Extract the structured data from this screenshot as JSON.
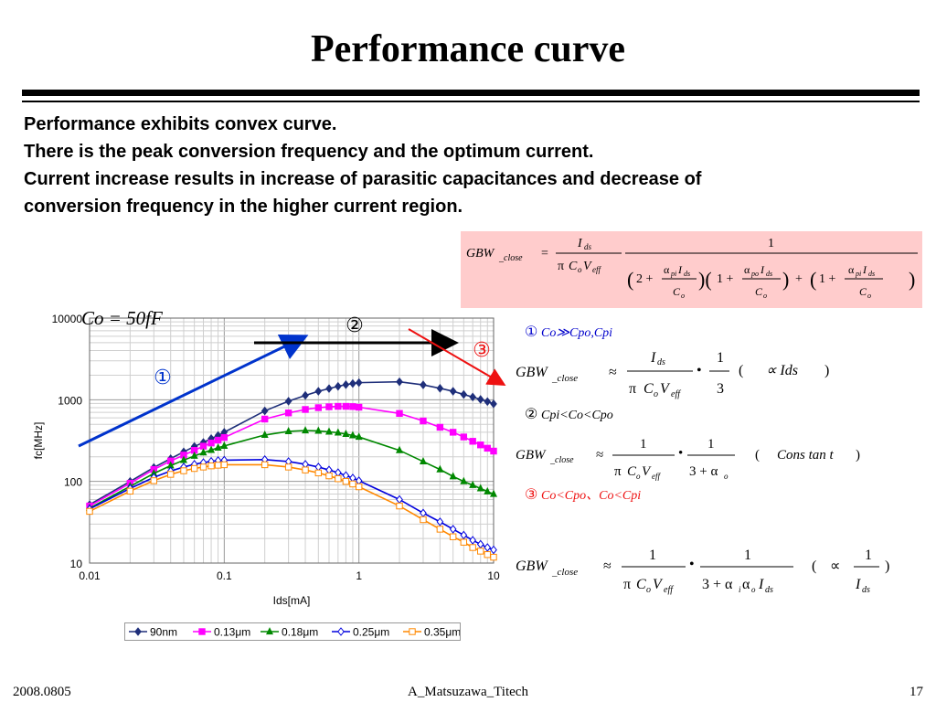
{
  "slide": {
    "title": "Performance curve",
    "bullets": [
      "Performance exhibits convex curve.",
      "There is the peak conversion frequency and the optimum current.",
      "Current increase results in increase of parasitic capacitances and decrease of",
      "conversion frequency in the higher current region."
    ],
    "footer_left": "2008.0805",
    "footer_center": "A_Matsuzawa_Titech",
    "footer_right": "17"
  },
  "formulas": {
    "main_lhs": "GBW",
    "main_lhs_sub": "_close",
    "case1_label": "①",
    "case1_cond": "Co≫Cpo,Cpi",
    "case1_note": "∝ Ids",
    "case2_label": "②",
    "case2_cond": "Cpi<Co<Cpo",
    "case2_note": "Cons tan t",
    "case3_label": "③",
    "case3_cond": "Co<Cpo、Co<Cpi",
    "case3_note": "∝ 1/Ids"
  },
  "annotations": {
    "co_label": "Co = 50fF",
    "marker1": "①",
    "marker2": "②",
    "marker3": "③"
  },
  "colors": {
    "formula_bg": "#ffcccc",
    "arrow1": "#0033cc",
    "arrow2": "#000000",
    "arrow3": "#ee1111",
    "case3_text": "#ee1111",
    "case1_text": "#0000cc"
  },
  "chart_data": {
    "type": "line",
    "xlabel": "Ids[mA]",
    "ylabel": "fc[MHz]",
    "xscale": "log",
    "yscale": "log",
    "xlim": [
      0.01,
      10
    ],
    "ylim": [
      10,
      10000
    ],
    "xticks": [
      "0.01",
      "0.1",
      "1",
      "10"
    ],
    "yticks": [
      "10",
      "100",
      "1000",
      "10000"
    ],
    "grid": true,
    "legend_position": "bottom",
    "series": [
      {
        "name": "90nm",
        "color": "#1f2f7a",
        "marker": "diamond",
        "x": [
          0.01,
          0.02,
          0.03,
          0.04,
          0.05,
          0.06,
          0.07,
          0.08,
          0.09,
          0.1,
          0.2,
          0.3,
          0.4,
          0.5,
          0.6,
          0.7,
          0.8,
          0.9,
          1,
          2,
          3,
          4,
          5,
          6,
          7,
          8,
          9,
          10
        ],
        "y": [
          52,
          100,
          148,
          190,
          230,
          268,
          300,
          335,
          365,
          400,
          730,
          960,
          1130,
          1270,
          1370,
          1460,
          1530,
          1580,
          1620,
          1660,
          1520,
          1380,
          1270,
          1160,
          1080,
          1010,
          950,
          890
        ]
      },
      {
        "name": "0.13μm",
        "color": "#ff00ff",
        "marker": "square",
        "x": [
          0.01,
          0.02,
          0.03,
          0.04,
          0.05,
          0.06,
          0.07,
          0.08,
          0.09,
          0.1,
          0.2,
          0.3,
          0.4,
          0.5,
          0.6,
          0.7,
          0.8,
          0.9,
          1,
          2,
          3,
          4,
          5,
          6,
          7,
          8,
          9,
          10
        ],
        "y": [
          50,
          95,
          140,
          178,
          210,
          240,
          270,
          295,
          320,
          345,
          580,
          690,
          760,
          800,
          820,
          830,
          830,
          825,
          810,
          680,
          550,
          460,
          400,
          350,
          310,
          280,
          255,
          235
        ]
      },
      {
        "name": "0.18μm",
        "color": "#008800",
        "marker": "triangle",
        "x": [
          0.01,
          0.02,
          0.03,
          0.04,
          0.05,
          0.06,
          0.07,
          0.08,
          0.09,
          0.1,
          0.2,
          0.3,
          0.4,
          0.5,
          0.6,
          0.7,
          0.8,
          0.9,
          1,
          2,
          3,
          4,
          5,
          6,
          7,
          8,
          9,
          10
        ],
        "y": [
          47,
          87,
          125,
          156,
          182,
          205,
          225,
          242,
          258,
          272,
          370,
          410,
          420,
          415,
          405,
          395,
          380,
          365,
          350,
          240,
          175,
          140,
          115,
          100,
          90,
          82,
          75,
          70
        ]
      },
      {
        "name": "0.25μm",
        "color": "#0000dd",
        "marker": "diamond-open",
        "x": [
          0.01,
          0.02,
          0.03,
          0.04,
          0.05,
          0.06,
          0.07,
          0.08,
          0.09,
          0.1,
          0.2,
          0.3,
          0.4,
          0.5,
          0.6,
          0.7,
          0.8,
          0.9,
          1,
          2,
          3,
          4,
          5,
          6,
          7,
          8,
          9,
          10
        ],
        "y": [
          46,
          82,
          112,
          134,
          150,
          162,
          170,
          176,
          180,
          182,
          185,
          175,
          162,
          150,
          138,
          128,
          118,
          110,
          102,
          60,
          41,
          32,
          26,
          22,
          19,
          17,
          15.5,
          14.5
        ]
      },
      {
        "name": "0.35μm",
        "color": "#ff8800",
        "marker": "square-open",
        "x": [
          0.01,
          0.02,
          0.03,
          0.04,
          0.05,
          0.06,
          0.07,
          0.08,
          0.09,
          0.1,
          0.2,
          0.3,
          0.4,
          0.5,
          0.6,
          0.7,
          0.8,
          0.9,
          1,
          2,
          3,
          4,
          5,
          6,
          7,
          8,
          9,
          10
        ],
        "y": [
          43,
          76,
          102,
          122,
          135,
          144,
          150,
          155,
          158,
          160,
          160,
          150,
          138,
          127,
          117,
          108,
          100,
          93,
          86,
          50,
          34,
          26,
          21,
          18,
          15.5,
          14,
          12.7,
          11.8
        ]
      }
    ]
  }
}
